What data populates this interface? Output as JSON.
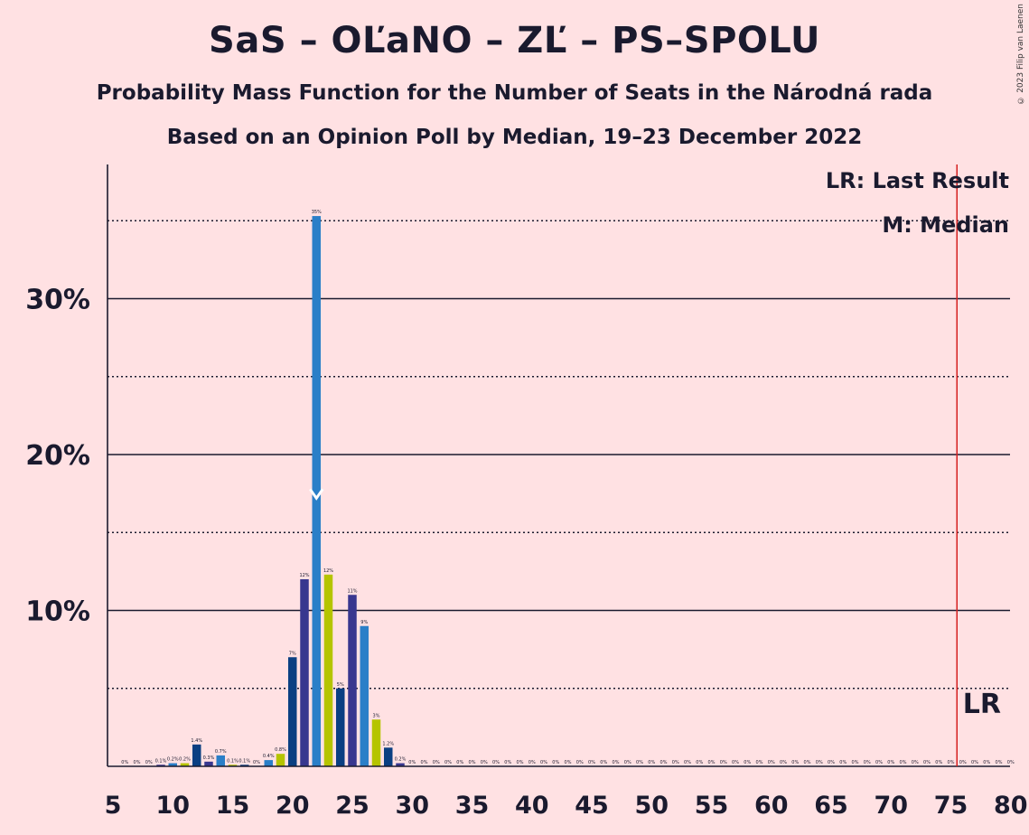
{
  "title": "SaS – OĽaNO – ZĽ – PS–SPOLU",
  "subtitle1": "Probability Mass Function for the Number of Seats in the Národná rada",
  "subtitle2": "Based on an Opinion Poll by Median, 19–23 December 2022",
  "copyright": "© 2023 Filip van Laenen",
  "legend": {
    "last_result": "LR: Last Result",
    "median": "M: Median"
  },
  "markers": {
    "lr_label": "LR",
    "median_symbol": "M"
  },
  "colors": {
    "background": "#ffe1e3",
    "palette": [
      "#2a7fc8",
      "#b5c400",
      "#0a3f82",
      "#38378f"
    ],
    "last_result_line": "#d62020",
    "text": "#1a1a2e"
  },
  "chart_data": {
    "type": "bar",
    "xlabel": "",
    "ylabel": "",
    "xlim": [
      5,
      80
    ],
    "ylim": [
      0,
      38
    ],
    "x_ticks": [
      5,
      10,
      15,
      20,
      25,
      30,
      35,
      40,
      45,
      50,
      55,
      60,
      65,
      70,
      75,
      80
    ],
    "y_ticks": [
      10,
      20,
      30
    ],
    "y_tick_labels": [
      "10%",
      "20%",
      "30%"
    ],
    "y_dotted_gridlines": [
      5,
      15,
      25,
      35
    ],
    "median_seat": 22,
    "last_result_seat": 76,
    "x": [
      6,
      7,
      8,
      9,
      10,
      11,
      12,
      13,
      14,
      15,
      16,
      17,
      18,
      19,
      20,
      21,
      22,
      23,
      24,
      25,
      26,
      27,
      28,
      29,
      30,
      31,
      32,
      33,
      34,
      35,
      36,
      37,
      38,
      39,
      40,
      41,
      42,
      43,
      44,
      45,
      46,
      47,
      48,
      49,
      50,
      51,
      52,
      53,
      54,
      55,
      56,
      57,
      58,
      59,
      60,
      61,
      62,
      63,
      64,
      65,
      66,
      67,
      68,
      69,
      70,
      71,
      72,
      73,
      74,
      75,
      76,
      77,
      78,
      79,
      80
    ],
    "values": [
      0,
      0,
      0,
      0.1,
      0.2,
      0.2,
      1.4,
      0.3,
      0.7,
      0.1,
      0.1,
      0,
      0.4,
      0.8,
      7,
      12,
      35.3,
      12.3,
      5,
      11,
      9,
      3,
      1.2,
      0.2,
      0,
      0,
      0,
      0,
      0,
      0,
      0,
      0,
      0,
      0,
      0,
      0,
      0,
      0,
      0,
      0,
      0,
      0,
      0,
      0,
      0,
      0,
      0,
      0,
      0,
      0,
      0,
      0,
      0,
      0,
      0,
      0,
      0,
      0,
      0,
      0,
      0,
      0,
      0,
      0,
      0,
      0,
      0,
      0,
      0,
      0,
      0,
      0,
      0,
      0,
      0
    ],
    "labels": [
      "0%",
      "0%",
      "0%",
      "0.1%",
      "0.2%",
      "0.2%",
      "1.4%",
      "0.3%",
      "0.7%",
      "0.1%",
      "0.1%",
      "0%",
      "0.4%",
      "0.8%",
      "7%",
      "12%",
      "35%",
      "12%",
      "5%",
      "11%",
      "9%",
      "3%",
      "1.2%",
      "0.2%",
      "0%",
      "0%",
      "0%",
      "0%",
      "0%",
      "0%",
      "0%",
      "0%",
      "0%",
      "0%",
      "0%",
      "0%",
      "0%",
      "0%",
      "0%",
      "0%",
      "0%",
      "0%",
      "0%",
      "0%",
      "0%",
      "0%",
      "0%",
      "0%",
      "0%",
      "0%",
      "0%",
      "0%",
      "0%",
      "0%",
      "0%",
      "0%",
      "0%",
      "0%",
      "0%",
      "0%",
      "0%",
      "0%",
      "0%",
      "0%",
      "0%",
      "0%",
      "0%",
      "0%",
      "0%",
      "0%",
      "0%",
      "0%",
      "0%",
      "0%",
      "0%"
    ]
  }
}
